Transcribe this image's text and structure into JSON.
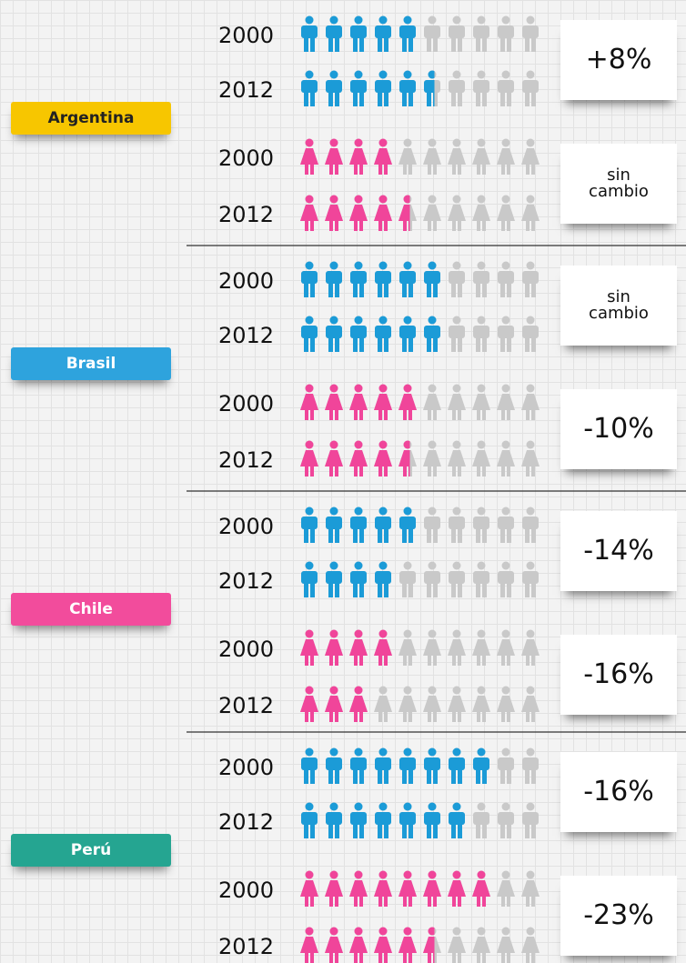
{
  "countries": [
    {
      "name": "Argentina",
      "color": "#f7c600",
      "men": {
        "years": [
          "2000",
          "2012"
        ],
        "values": [
          5,
          5.5
        ],
        "change": "+8%"
      },
      "women": {
        "years": [
          "2000",
          "2012"
        ],
        "values": [
          4,
          4.5
        ],
        "change": "sin cambio"
      }
    },
    {
      "name": "Brasil",
      "color": "#2ea3dd",
      "men": {
        "years": [
          "2000",
          "2012"
        ],
        "values": [
          6,
          6
        ],
        "change": "sin cambio"
      },
      "women": {
        "years": [
          "2000",
          "2012"
        ],
        "values": [
          5,
          4.5
        ],
        "change": "-10%"
      }
    },
    {
      "name": "Chile",
      "color": "#f24c9c",
      "men": {
        "years": [
          "2000",
          "2012"
        ],
        "values": [
          5,
          4
        ],
        "change": "-14%"
      },
      "women": {
        "years": [
          "2000",
          "2012"
        ],
        "values": [
          4,
          3
        ],
        "change": "-16%"
      }
    },
    {
      "name": "Perú",
      "color": "#25a591",
      "men": {
        "years": [
          "2000",
          "2012"
        ],
        "values": [
          8,
          7
        ],
        "change": "-16%"
      },
      "women": {
        "years": [
          "2000",
          "2012"
        ],
        "values": [
          8,
          5.5
        ],
        "change": "-23%"
      }
    }
  ],
  "icon_colors": {
    "men": "#1b9bd7",
    "women": "#f0459a",
    "empty": "#c9c9c9"
  }
}
